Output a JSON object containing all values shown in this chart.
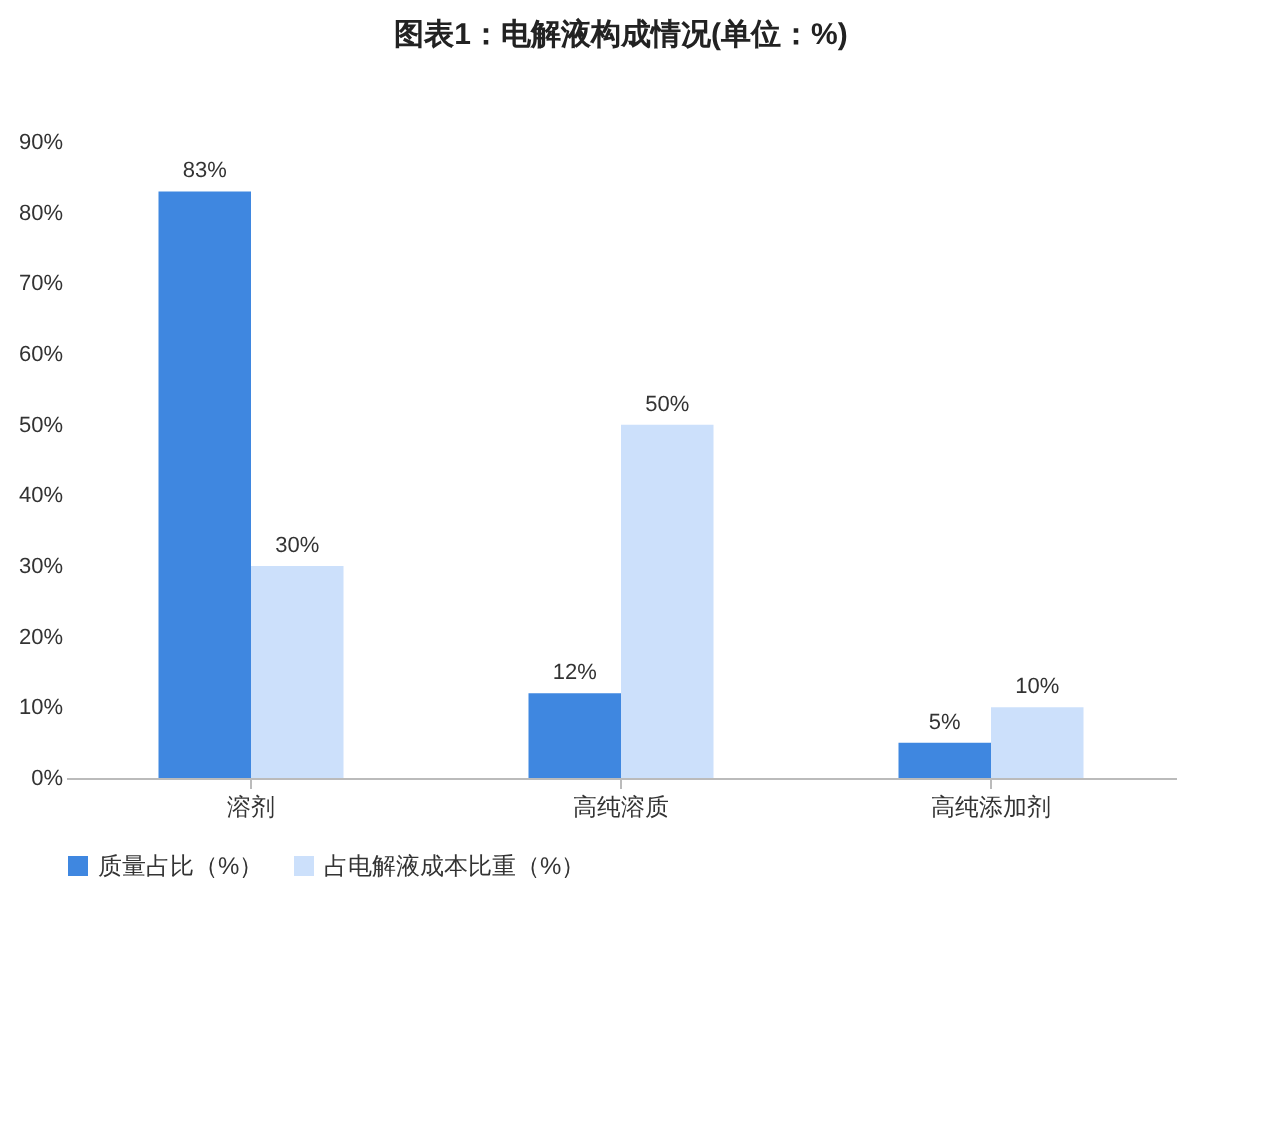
{
  "chart_data": {
    "type": "bar",
    "title": "图表1：电解液构成情况(单位：%)",
    "categories": [
      "溶剂",
      "高纯溶质",
      "高纯添加剂"
    ],
    "series": [
      {
        "name": "质量占比（%）",
        "color": "#3f87e0",
        "values": [
          83,
          12,
          5
        ],
        "value_labels": [
          "83%",
          "12%",
          "5%"
        ]
      },
      {
        "name": "占电解液成本比重（%）",
        "color": "#cce0fb",
        "values": [
          30,
          50,
          10
        ],
        "value_labels": [
          "30%",
          "50%",
          "10%"
        ]
      }
    ],
    "ylim": [
      0,
      90
    ],
    "yticks": [
      {
        "value": 0,
        "label": "0%"
      },
      {
        "value": 10,
        "label": "10%"
      },
      {
        "value": 20,
        "label": "20%"
      },
      {
        "value": 30,
        "label": "30%"
      },
      {
        "value": 40,
        "label": "40%"
      },
      {
        "value": 50,
        "label": "50%"
      },
      {
        "value": 60,
        "label": "60%"
      },
      {
        "value": 70,
        "label": "70%"
      },
      {
        "value": 80,
        "label": "80%"
      },
      {
        "value": 90,
        "label": "90%"
      }
    ],
    "legend": "bottom"
  }
}
